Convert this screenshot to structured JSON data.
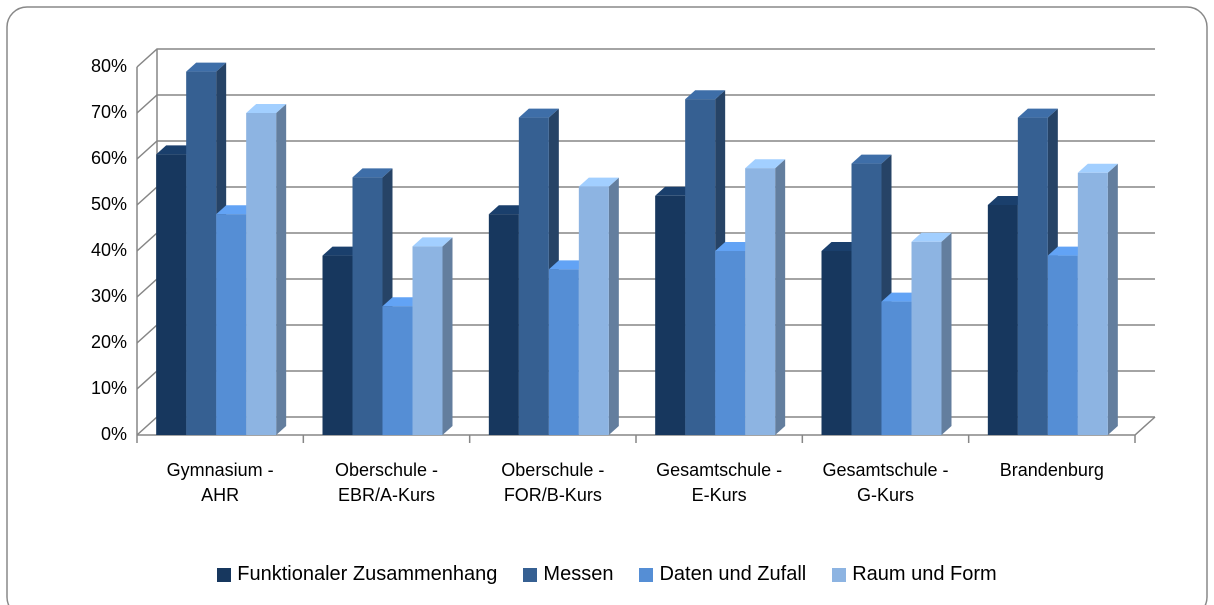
{
  "chart_data": {
    "type": "bar3d",
    "categories": [
      "Gymnasium - AHR",
      "Oberschule - EBR/A-Kurs",
      "Oberschule - FOR/B-Kurs",
      "Gesamtschule - E-Kurs",
      "Gesamtschule - G-Kurs",
      "Brandenburg"
    ],
    "series": [
      {
        "name": "Funktionaler Zusammenhang",
        "color": "#17375e",
        "values": [
          61,
          39,
          48,
          52,
          40,
          50
        ]
      },
      {
        "name": "Messen",
        "color": "#366092",
        "values": [
          79,
          56,
          69,
          73,
          59,
          69
        ]
      },
      {
        "name": "Daten und Zufall",
        "color": "#558ed5",
        "values": [
          48,
          28,
          36,
          40,
          29,
          39
        ]
      },
      {
        "name": "Raum und Form",
        "color": "#8db4e2",
        "values": [
          70,
          41,
          54,
          58,
          42,
          57
        ]
      }
    ],
    "ylim": [
      0,
      80
    ],
    "yticks": [
      {
        "value": 0,
        "label": "0%"
      },
      {
        "value": 10,
        "label": "10%"
      },
      {
        "value": 20,
        "label": "20%"
      },
      {
        "value": 30,
        "label": "30%"
      },
      {
        "value": 40,
        "label": "40%"
      },
      {
        "value": 50,
        "label": "50%"
      },
      {
        "value": 60,
        "label": "60%"
      },
      {
        "value": 70,
        "label": "70%"
      },
      {
        "value": 80,
        "label": "80%"
      }
    ],
    "grid": true
  }
}
